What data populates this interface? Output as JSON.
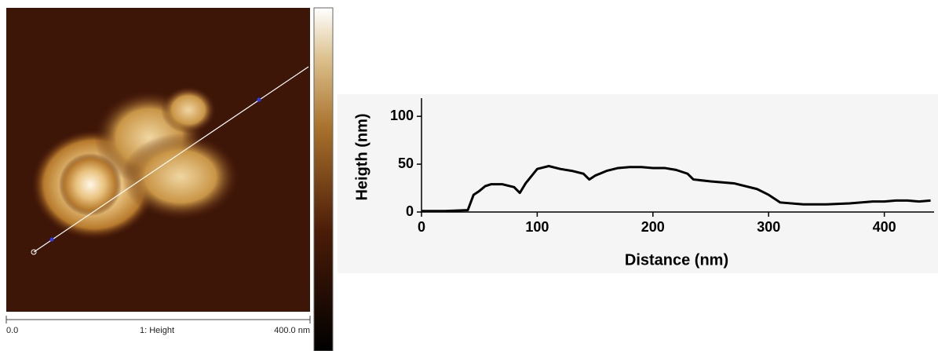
{
  "afm_image": {
    "scale_start": "0.0",
    "channel": "1: Height",
    "scale_end": "400.0 nm"
  },
  "chart_data": {
    "type": "line",
    "x_label": "Distance (nm)",
    "y_label": "Heigth (nm)",
    "x": [
      0,
      20,
      40,
      45,
      50,
      55,
      60,
      70,
      80,
      85,
      90,
      100,
      110,
      120,
      130,
      140,
      145,
      150,
      160,
      170,
      180,
      190,
      200,
      210,
      220,
      230,
      235,
      250,
      270,
      290,
      300,
      310,
      330,
      350,
      370,
      390,
      400,
      410,
      420,
      430,
      440
    ],
    "values": [
      1,
      1,
      2,
      18,
      22,
      27,
      29,
      29,
      26,
      20,
      30,
      45,
      48,
      45,
      43,
      40,
      34,
      38,
      43,
      46,
      47,
      47,
      46,
      46,
      44,
      40,
      34,
      32,
      30,
      24,
      18,
      10,
      8,
      8,
      9,
      11,
      11,
      12,
      12,
      11,
      12
    ],
    "color": "#000000",
    "xlim": [
      0,
      443
    ],
    "ylim": [
      0,
      119
    ],
    "xticks": [
      0,
      100,
      200,
      300,
      400
    ],
    "yticks": [
      0,
      50,
      100
    ]
  }
}
